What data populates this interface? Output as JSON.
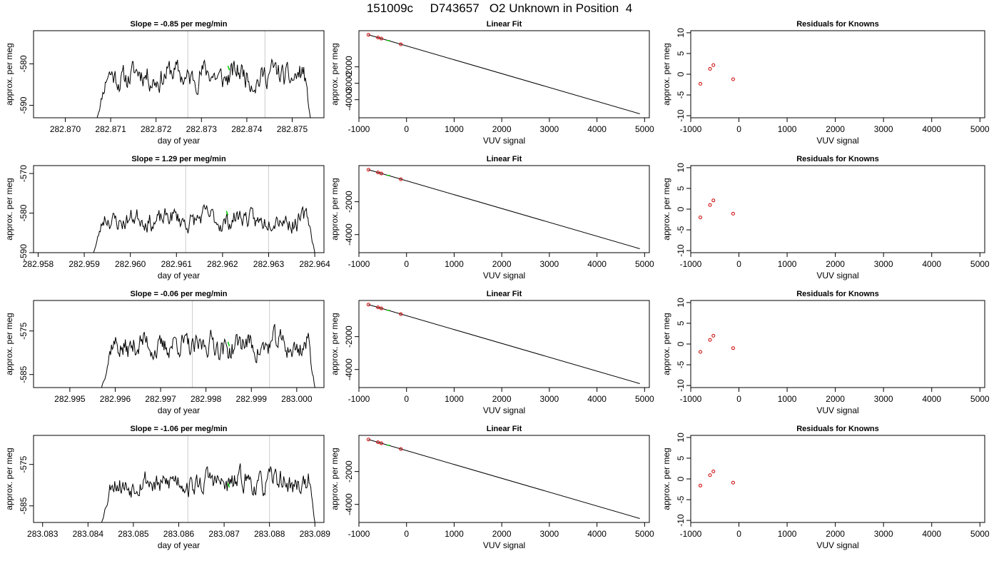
{
  "figure": {
    "title": "151009c     D743657   O2 Unknown in Position  4"
  },
  "colors": {
    "trace": "#000000",
    "marker_green": "#00cc00",
    "residual_red": "#cc0000",
    "vline": "#cccccc",
    "axes": "#000000"
  },
  "chart_data": [
    {
      "type": "line",
      "row": 0,
      "col": 0,
      "title": "Slope =  -0.85  per meg/min",
      "xlabel": "day of year",
      "ylabel": "approx. per meg",
      "xlim": [
        282.8693,
        282.8757
      ],
      "ylim": [
        -593,
        -572
      ],
      "xticks": [
        "282.870",
        "282.871",
        "282.872",
        "282.873",
        "282.874",
        "282.875"
      ],
      "xtick_values": [
        282.87,
        282.871,
        282.872,
        282.873,
        282.874,
        282.875
      ],
      "yticks": [
        "-590",
        "-580"
      ],
      "ytick_values": [
        -590,
        -580
      ],
      "trace_x_range": [
        282.8707,
        282.8754
      ],
      "trace_y_range": [
        -593,
        -576
      ],
      "trace_seed": 11,
      "vlines": [
        282.8727,
        282.8744
      ],
      "green_mark": {
        "x": 282.8736,
        "y": -581
      }
    },
    {
      "type": "scatter+line",
      "row": 0,
      "col": 1,
      "title": "Linear Fit",
      "xlabel": "VUV signal",
      "ylabel": "approx. per meg",
      "xlim": [
        -1000,
        5100
      ],
      "ylim": [
        -5100,
        200
      ],
      "xticks": [
        "-1000",
        "0",
        "1000",
        "2000",
        "3000",
        "4000",
        "5000"
      ],
      "xtick_values": [
        -1000,
        0,
        1000,
        2000,
        3000,
        4000,
        5000
      ],
      "yticks": [
        "-4000",
        "-3000",
        "-2000"
      ],
      "ytick_values": [
        -4000,
        -3000,
        -2000
      ],
      "fit_line": {
        "x": [
          -800,
          4900
        ],
        "y": [
          -50,
          -4860
        ]
      },
      "points": {
        "x": [
          -800,
          -600,
          -530,
          -120
        ],
        "y": [
          -50,
          -220,
          -280,
          -630
        ]
      },
      "green_points": {
        "x": [
          -380
        ],
        "y": [
          -400
        ]
      }
    },
    {
      "type": "scatter",
      "row": 0,
      "col": 2,
      "title": "Residuals for Knowns",
      "xlabel": "VUV signal",
      "ylabel": "approx. per meg",
      "xlim": [
        -1000,
        5100
      ],
      "ylim": [
        -10.5,
        10.5
      ],
      "xticks": [
        "-1000",
        "0",
        "1000",
        "2000",
        "3000",
        "4000",
        "5000"
      ],
      "xtick_values": [
        -1000,
        0,
        1000,
        2000,
        3000,
        4000,
        5000
      ],
      "yticks": [
        "-10",
        "-5",
        "0",
        "5",
        "10"
      ],
      "ytick_values": [
        -10,
        -5,
        0,
        5,
        10
      ],
      "points": {
        "x": [
          -800,
          -600,
          -530,
          -120
        ],
        "y": [
          -2.3,
          1.3,
          2.2,
          -1.2
        ]
      }
    },
    {
      "type": "line",
      "row": 1,
      "col": 0,
      "title": "Slope =  1.29  per meg/min",
      "xlabel": "day of year",
      "ylabel": "approx. per meg",
      "xlim": [
        282.9579,
        282.9642
      ],
      "ylim": [
        -590,
        -568
      ],
      "xticks": [
        "282.958",
        "282.959",
        "282.960",
        "282.961",
        "282.962",
        "282.963",
        "282.964"
      ],
      "xtick_values": [
        282.958,
        282.959,
        282.96,
        282.961,
        282.962,
        282.963,
        282.964
      ],
      "yticks": [
        "-590",
        "-580",
        "-570"
      ],
      "ytick_values": [
        -590,
        -580,
        -570
      ],
      "trace_x_range": [
        282.9592,
        282.964
      ],
      "trace_y_range": [
        -590,
        -576
      ],
      "trace_seed": 23,
      "vlines": [
        282.9612,
        282.963
      ],
      "green_mark": {
        "x": 282.9621,
        "y": -580
      }
    },
    {
      "type": "scatter+line",
      "row": 1,
      "col": 1,
      "title": "Linear Fit",
      "xlabel": "VUV signal",
      "ylabel": "approx. per meg",
      "xlim": [
        -1000,
        5100
      ],
      "ylim": [
        -5100,
        200
      ],
      "xticks": [
        "-1000",
        "0",
        "1000",
        "2000",
        "3000",
        "4000",
        "5000"
      ],
      "xtick_values": [
        -1000,
        0,
        1000,
        2000,
        3000,
        4000,
        5000
      ],
      "yticks": [
        "-4000",
        "-2000"
      ],
      "ytick_values": [
        -4000,
        -2000
      ],
      "fit_line": {
        "x": [
          -800,
          4900
        ],
        "y": [
          -50,
          -4860
        ]
      },
      "points": {
        "x": [
          -800,
          -600,
          -530,
          -120
        ],
        "y": [
          -50,
          -220,
          -280,
          -630
        ]
      },
      "green_points": {
        "x": [
          -380
        ],
        "y": [
          -400
        ]
      }
    },
    {
      "type": "scatter",
      "row": 1,
      "col": 2,
      "title": "Residuals for Knowns",
      "xlabel": "VUV signal",
      "ylabel": "approx. per meg",
      "xlim": [
        -1000,
        5100
      ],
      "ylim": [
        -10.5,
        10.5
      ],
      "xticks": [
        "-1000",
        "0",
        "1000",
        "2000",
        "3000",
        "4000",
        "5000"
      ],
      "xtick_values": [
        -1000,
        0,
        1000,
        2000,
        3000,
        4000,
        5000
      ],
      "yticks": [
        "-10",
        "-5",
        "0",
        "5",
        "10"
      ],
      "ytick_values": [
        -10,
        -5,
        0,
        5,
        10
      ],
      "points": {
        "x": [
          -800,
          -600,
          -530,
          -120
        ],
        "y": [
          -2.0,
          1.0,
          2.1,
          -1.1
        ]
      }
    },
    {
      "type": "line",
      "row": 2,
      "col": 0,
      "title": "Slope =  -0.06  per meg/min",
      "xlabel": "day of year",
      "ylabel": "approx. per meg",
      "xlim": [
        282.9942,
        283.0006
      ],
      "ylim": [
        -588,
        -568
      ],
      "xticks": [
        "282.995",
        "282.996",
        "282.997",
        "282.998",
        "282.999",
        "283.000"
      ],
      "xtick_values": [
        282.995,
        282.996,
        282.997,
        282.998,
        282.999,
        283.0
      ],
      "yticks": [
        "-585",
        "-575"
      ],
      "ytick_values": [
        -585,
        -575
      ],
      "trace_x_range": [
        282.9957,
        283.0004
      ],
      "trace_y_range": [
        -588,
        -572
      ],
      "trace_seed": 37,
      "vlines": [
        282.9977,
        282.9994
      ],
      "green_mark": {
        "x": 282.9985,
        "y": -578
      }
    },
    {
      "type": "scatter+line",
      "row": 2,
      "col": 1,
      "title": "Linear Fit",
      "xlabel": "VUV signal",
      "ylabel": "approx. per meg",
      "xlim": [
        -1000,
        5100
      ],
      "ylim": [
        -5100,
        200
      ],
      "xticks": [
        "-1000",
        "0",
        "1000",
        "2000",
        "3000",
        "4000",
        "5000"
      ],
      "xtick_values": [
        -1000,
        0,
        1000,
        2000,
        3000,
        4000,
        5000
      ],
      "yticks": [
        "-4000",
        "-2000"
      ],
      "ytick_values": [
        -4000,
        -2000
      ],
      "fit_line": {
        "x": [
          -800,
          4900
        ],
        "y": [
          -50,
          -4860
        ]
      },
      "points": {
        "x": [
          -800,
          -600,
          -530,
          -120
        ],
        "y": [
          -50,
          -220,
          -280,
          -630
        ]
      },
      "green_points": {
        "x": [
          -380
        ],
        "y": [
          -400
        ]
      }
    },
    {
      "type": "scatter",
      "row": 2,
      "col": 2,
      "title": "Residuals for Knowns",
      "xlabel": "VUV signal",
      "ylabel": "approx. per meg",
      "xlim": [
        -1000,
        5100
      ],
      "ylim": [
        -10.5,
        10.5
      ],
      "xticks": [
        "-1000",
        "0",
        "1000",
        "2000",
        "3000",
        "4000",
        "5000"
      ],
      "xtick_values": [
        -1000,
        0,
        1000,
        2000,
        3000,
        4000,
        5000
      ],
      "yticks": [
        "-10",
        "-5",
        "0",
        "5",
        "10"
      ],
      "ytick_values": [
        -10,
        -5,
        0,
        5,
        10
      ],
      "points": {
        "x": [
          -800,
          -600,
          -530,
          -120
        ],
        "y": [
          -1.9,
          1.0,
          2.0,
          -1.0
        ]
      }
    },
    {
      "type": "line",
      "row": 3,
      "col": 0,
      "title": "Slope =  -1.06  per meg/min",
      "xlabel": "day of year",
      "ylabel": "approx. per meg",
      "xlim": [
        283.0828,
        283.0892
      ],
      "ylim": [
        -589,
        -568
      ],
      "xticks": [
        "283.083",
        "283.084",
        "283.085",
        "283.086",
        "283.087",
        "283.088",
        "283.089"
      ],
      "xtick_values": [
        283.083,
        283.084,
        283.085,
        283.086,
        283.087,
        283.088,
        283.089
      ],
      "yticks": [
        "-585",
        "-575"
      ],
      "ytick_values": [
        -585,
        -575
      ],
      "trace_x_range": [
        283.0843,
        283.089
      ],
      "trace_y_range": [
        -589,
        -573
      ],
      "trace_seed": 53,
      "vlines": [
        283.0862,
        283.088
      ],
      "green_mark": {
        "x": 283.0871,
        "y": -580
      }
    },
    {
      "type": "scatter+line",
      "row": 3,
      "col": 1,
      "title": "Linear Fit",
      "xlabel": "VUV signal",
      "ylabel": "approx. per meg",
      "xlim": [
        -1000,
        5100
      ],
      "ylim": [
        -5100,
        200
      ],
      "xticks": [
        "-1000",
        "0",
        "1000",
        "2000",
        "3000",
        "4000",
        "5000"
      ],
      "xtick_values": [
        -1000,
        0,
        1000,
        2000,
        3000,
        4000,
        5000
      ],
      "yticks": [
        "-4000",
        "-2000"
      ],
      "ytick_values": [
        -4000,
        -2000
      ],
      "fit_line": {
        "x": [
          -800,
          4900
        ],
        "y": [
          -50,
          -4860
        ]
      },
      "points": {
        "x": [
          -800,
          -600,
          -530,
          -120
        ],
        "y": [
          -50,
          -220,
          -280,
          -630
        ]
      },
      "green_points": {
        "x": [
          -380
        ],
        "y": [
          -400
        ]
      }
    },
    {
      "type": "scatter",
      "row": 3,
      "col": 2,
      "title": "Residuals for Knowns",
      "xlabel": "VUV signal",
      "ylabel": "approx. per meg",
      "xlim": [
        -1000,
        5100
      ],
      "ylim": [
        -10.5,
        10.5
      ],
      "xticks": [
        "-1000",
        "0",
        "1000",
        "2000",
        "3000",
        "4000",
        "5000"
      ],
      "xtick_values": [
        -1000,
        0,
        1000,
        2000,
        3000,
        4000,
        5000
      ],
      "yticks": [
        "-10",
        "-5",
        "0",
        "5",
        "10"
      ],
      "ytick_values": [
        -10,
        -5,
        0,
        5,
        10
      ],
      "points": {
        "x": [
          -800,
          -600,
          -530,
          -120
        ],
        "y": [
          -1.6,
          0.9,
          1.8,
          -0.9
        ]
      }
    }
  ]
}
